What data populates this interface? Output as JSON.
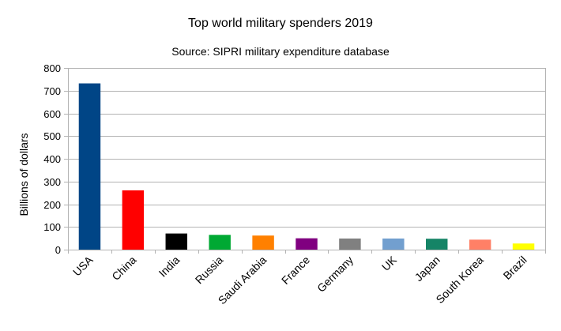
{
  "chart_data": {
    "type": "bar",
    "title": "Top world military spenders 2019",
    "subtitle": "Source: SIPRI military expenditure database",
    "xlabel": "",
    "ylabel": "Billions of dollars",
    "ylim": [
      0,
      800
    ],
    "yticks": [
      0,
      100,
      200,
      300,
      400,
      500,
      600,
      700,
      800
    ],
    "grid": true,
    "legend": "none",
    "categories": [
      "USA",
      "China",
      "India",
      "Russia",
      "Saudi Arabia",
      "France",
      "Germany",
      "UK",
      "Japan",
      "South Korea",
      "Brazil"
    ],
    "values": [
      732,
      261,
      71,
      65,
      62,
      50,
      49,
      49,
      48,
      44,
      27
    ],
    "colors": [
      "#004586",
      "#ff0000",
      "#000000",
      "#00a933",
      "#ff8000",
      "#800080",
      "#808080",
      "#729fcf",
      "#158466",
      "#ff8066",
      "#ffff00"
    ]
  }
}
